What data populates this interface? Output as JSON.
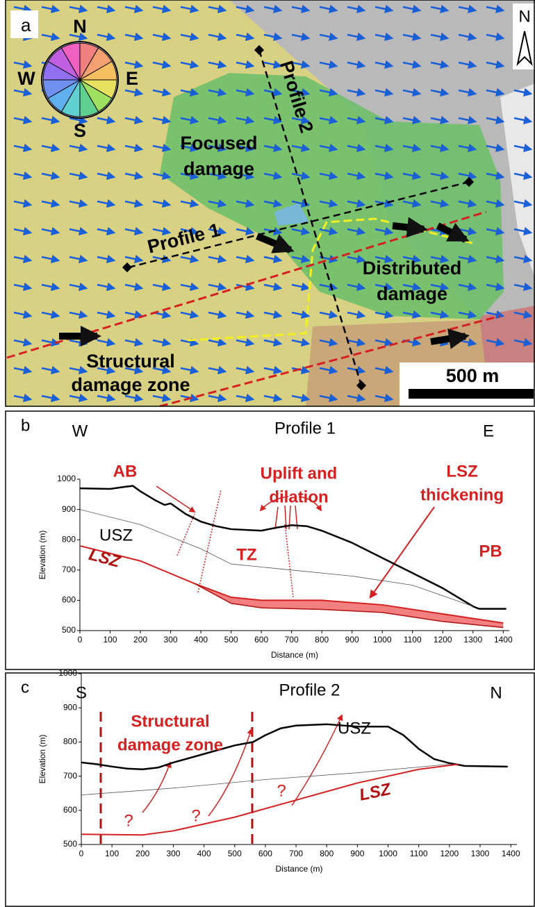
{
  "map": {
    "panel_label": "a",
    "compass": {
      "north": "N",
      "west": "W",
      "east": "E",
      "south": "S"
    },
    "labels": [
      [
        "Focused",
        "damage"
      ],
      [
        "Profile 2"
      ],
      [
        "Profile 1"
      ],
      [
        "Distributed",
        "damage"
      ],
      [
        "Structural",
        "damage zone"
      ]
    ],
    "scale_bar": "500 m",
    "north_arrow": "N"
  },
  "chart_data": [
    {
      "type": "line",
      "panel_label": "b",
      "title": "Profile 1",
      "direction_labels": [
        "W",
        "E"
      ],
      "x_label": "Distance (m)",
      "y_label": "Elevation (m)",
      "xlim": [
        0,
        1420
      ],
      "ylim": [
        500,
        1000
      ],
      "xticks": [
        0,
        100,
        200,
        300,
        400,
        500,
        600,
        700,
        800,
        900,
        1000,
        1100,
        1200,
        1300,
        1400
      ],
      "yticks": [
        500,
        600,
        700,
        800,
        900,
        1000
      ],
      "annotations": [
        [
          "AB"
        ],
        [
          "Uplift and",
          "dilation"
        ],
        [
          "LSZ",
          "thickening"
        ],
        [
          "USZ"
        ],
        [
          "TZ"
        ],
        [
          "LSZ"
        ],
        [
          "PB"
        ]
      ],
      "series": [
        {
          "color": "#000000",
          "x": [
            0,
            100,
            150,
            175,
            200,
            250,
            280,
            300,
            350,
            400,
            450,
            500,
            600,
            650,
            700,
            750,
            800,
            900,
            1000,
            1100,
            1200,
            1250,
            1300,
            1320,
            1410
          ],
          "values": [
            970,
            968,
            975,
            978,
            960,
            930,
            915,
            920,
            885,
            860,
            845,
            835,
            830,
            840,
            848,
            845,
            830,
            790,
            740,
            690,
            640,
            610,
            580,
            572,
            572
          ]
        },
        {
          "color": "#555555",
          "x": [
            0,
            200,
            400,
            500,
            700,
            900,
            1100,
            1300
          ],
          "values": [
            900,
            850,
            770,
            720,
            700,
            680,
            650,
            580
          ]
        },
        {
          "color": "#d42020",
          "x": [
            0,
            200,
            380,
            500,
            600,
            800,
            1000,
            1200,
            1400
          ],
          "values": [
            780,
            730,
            655,
            610,
            600,
            600,
            585,
            555,
            525
          ]
        },
        {
          "color": "#b01010",
          "x": [
            380,
            500,
            600,
            800,
            1000,
            1200,
            1400
          ],
          "values": [
            655,
            590,
            575,
            570,
            560,
            530,
            510
          ]
        }
      ]
    },
    {
      "type": "line",
      "panel_label": "c",
      "title": "Profile 2",
      "direction_labels": [
        "S",
        "N"
      ],
      "x_label": "Distance (m)",
      "y_label": "Elevation (m)",
      "xlim": [
        0,
        1420
      ],
      "ylim": [
        500,
        1000
      ],
      "xticks": [
        0,
        100,
        200,
        300,
        400,
        500,
        600,
        700,
        800,
        900,
        1000,
        1100,
        1200,
        1300,
        1400
      ],
      "yticks": [
        500,
        600,
        700,
        800,
        900,
        1000
      ],
      "annotations": [
        [
          "Structural",
          "damage zone"
        ],
        [
          "USZ"
        ],
        [
          "LSZ"
        ],
        [
          "?"
        ],
        [
          "?"
        ],
        [
          "?"
        ]
      ],
      "series": [
        {
          "color": "#000000",
          "x": [
            0,
            50,
            100,
            150,
            200,
            250,
            300,
            400,
            500,
            560,
            600,
            650,
            700,
            800,
            900,
            1000,
            1050,
            1100,
            1150,
            1200,
            1250,
            1390
          ],
          "values": [
            740,
            735,
            728,
            722,
            720,
            725,
            740,
            765,
            790,
            800,
            820,
            840,
            848,
            852,
            845,
            845,
            820,
            780,
            750,
            738,
            730,
            728
          ]
        },
        {
          "color": "#555555",
          "x": [
            0,
            300,
            600,
            900,
            1200
          ],
          "values": [
            645,
            665,
            690,
            710,
            735
          ]
        },
        {
          "color": "#d42020",
          "x": [
            0,
            200,
            300,
            500,
            700,
            900,
            1100,
            1230
          ],
          "values": [
            530,
            528,
            540,
            580,
            630,
            680,
            720,
            735
          ]
        }
      ]
    }
  ]
}
